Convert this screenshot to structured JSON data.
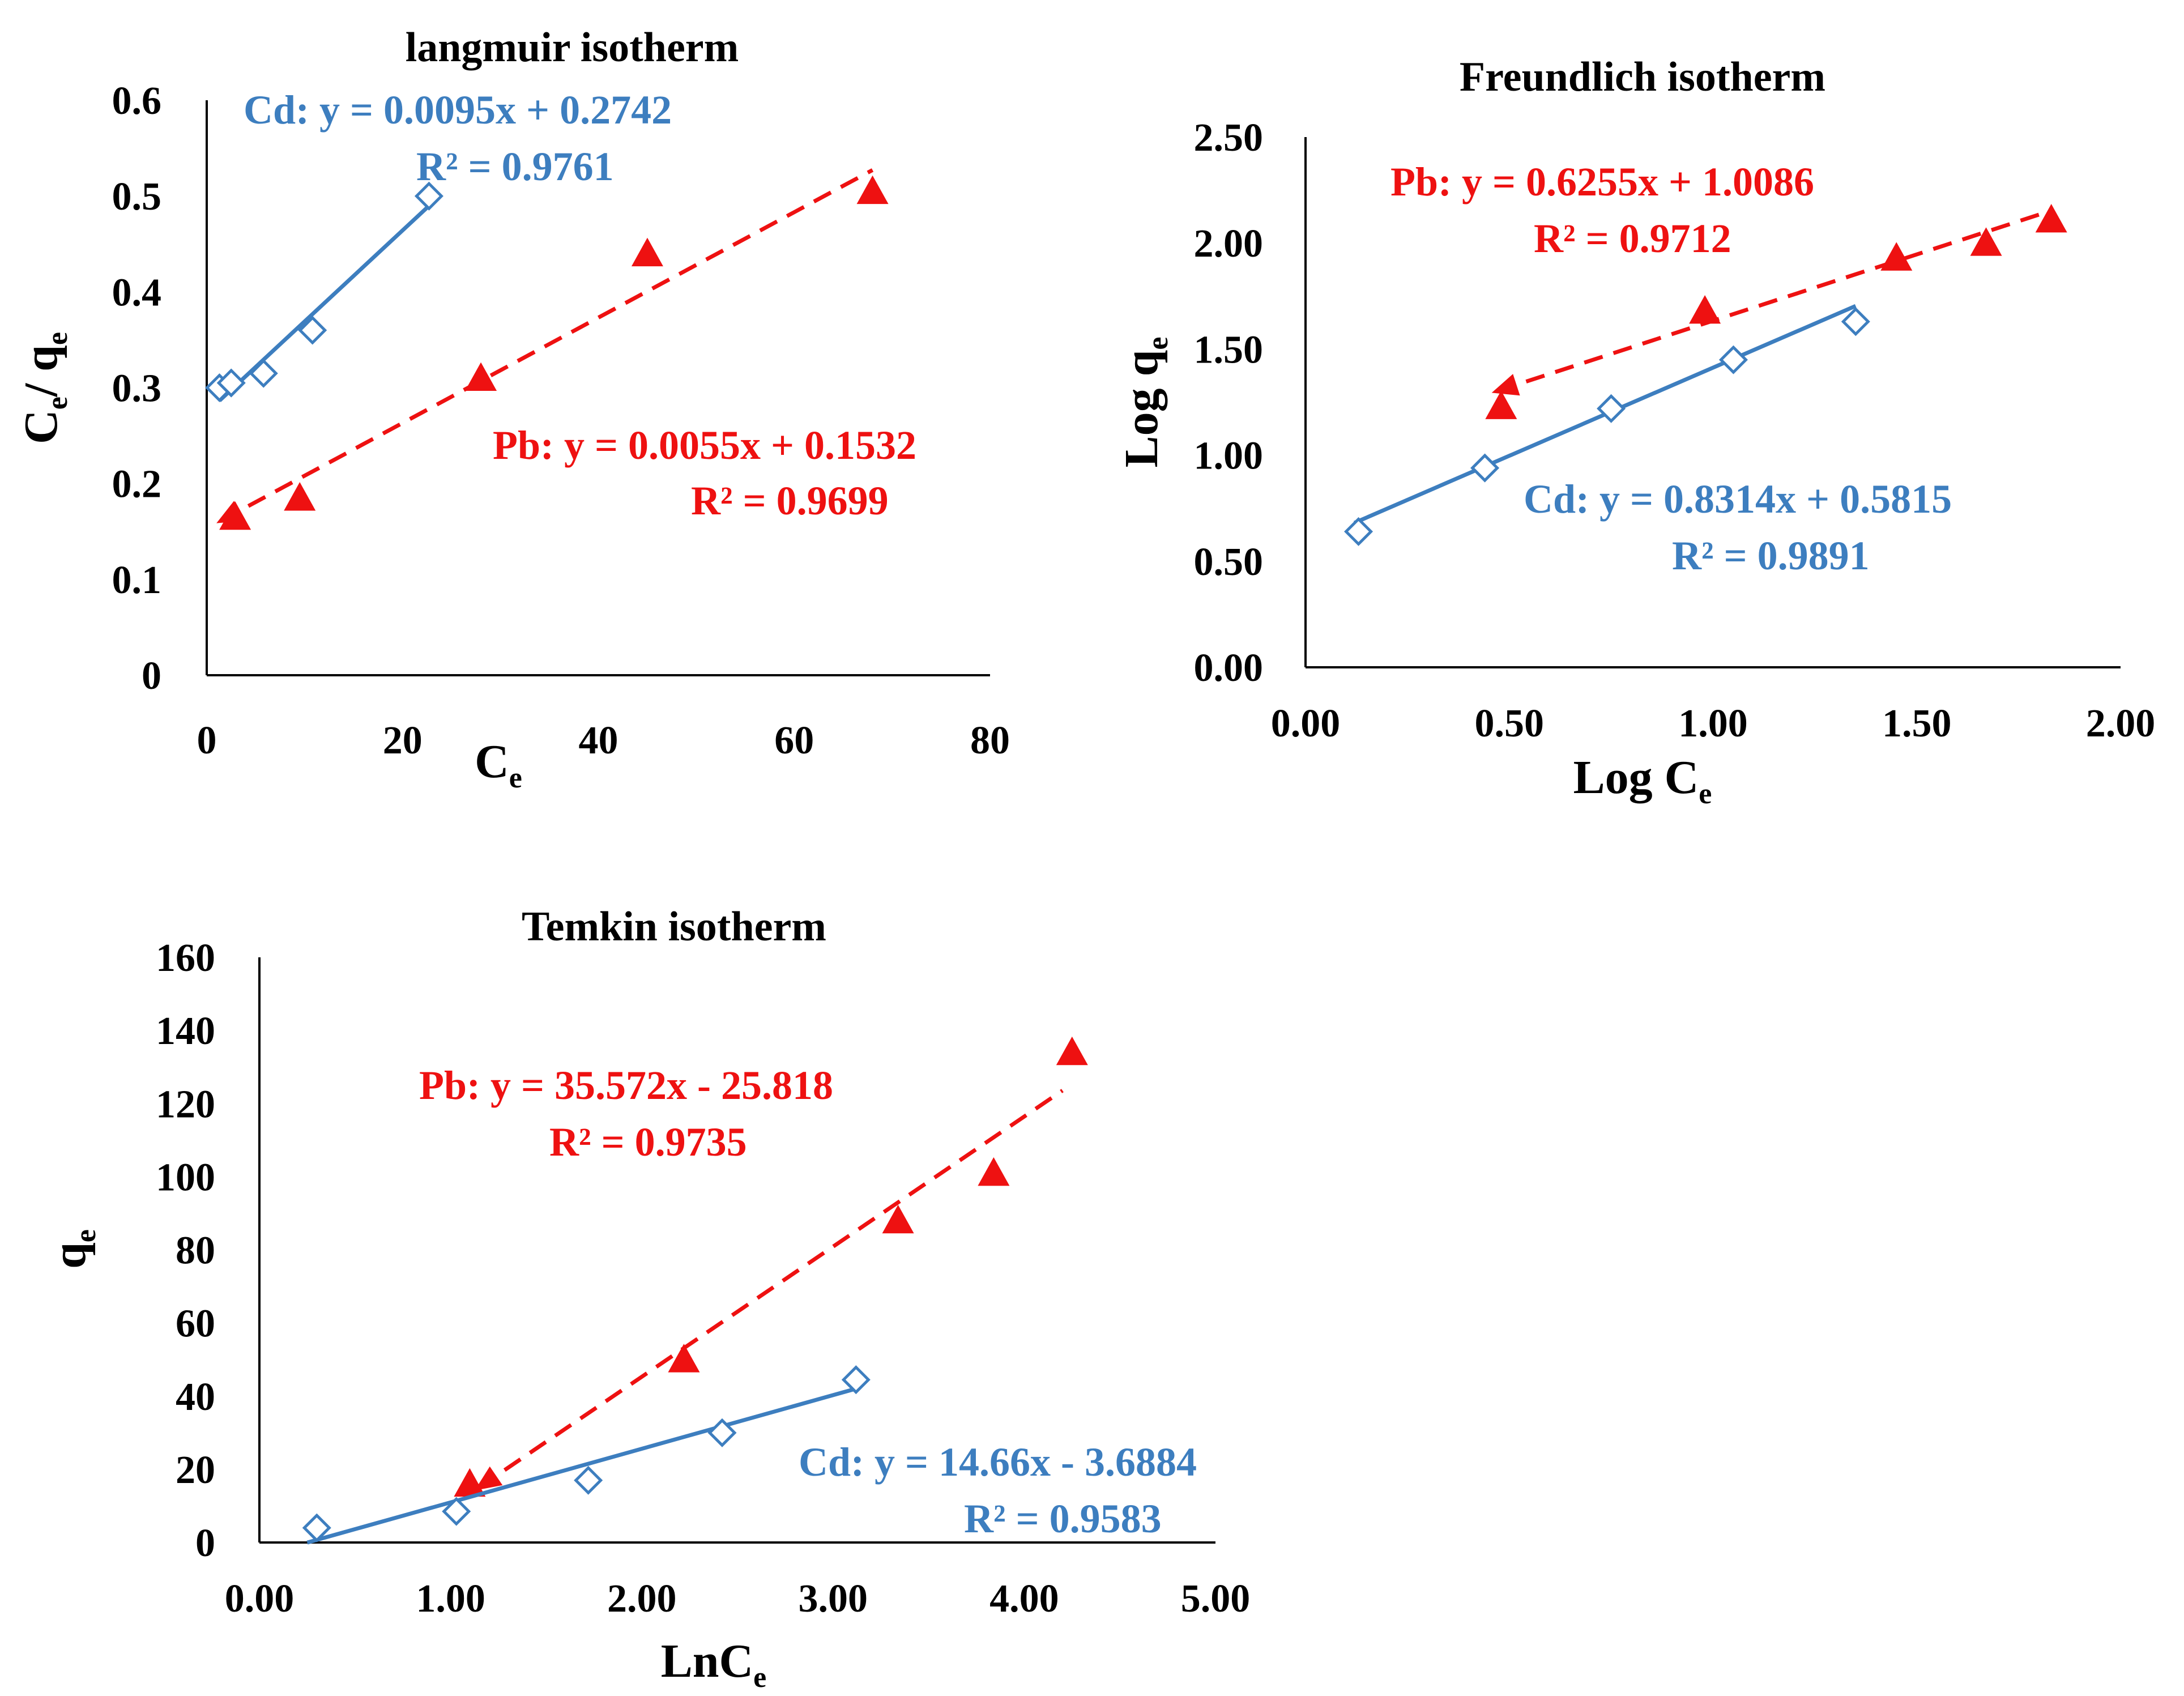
{
  "colors": {
    "cd": "#3d7ebf",
    "pb": "#ee1111",
    "axis": "#000000"
  },
  "chart_data": [
    {
      "id": "langmuir",
      "type": "scatter",
      "title": "langmuir  isotherm",
      "xlabel": {
        "main": "C",
        "sub": "e"
      },
      "ylabel": {
        "main": "C",
        "sub": "e",
        "mid": "/ q",
        "sub2": "e"
      },
      "xlim": [
        0,
        80
      ],
      "ylim": [
        0,
        0.6
      ],
      "x_ticks": [
        0,
        20,
        40,
        60,
        80
      ],
      "x_tick_labels": [
        "0",
        "20",
        "40",
        "60",
        "80"
      ],
      "y_ticks": [
        0,
        0.1,
        0.2,
        0.3,
        0.4,
        0.5,
        0.6
      ],
      "y_tick_labels": [
        "0",
        "0.1",
        "0.2",
        "0.3",
        "0.4",
        "0.5",
        "0.6"
      ],
      "grid": false,
      "series": [
        {
          "name": "Cd",
          "color_key": "cd",
          "marker": "diamond",
          "x": [
            1.3,
            2.5,
            5.8,
            10.8,
            22.7
          ],
          "y": [
            0.3,
            0.305,
            0.315,
            0.36,
            0.5
          ],
          "fit": {
            "slope": 0.0095,
            "intercept": 0.2742,
            "x_range": [
              1.3,
              22.7
            ],
            "style": "solid"
          },
          "equation": "Cd:  y = 0.0095x + 0.2742",
          "r2": "R² = 0.9761"
        },
        {
          "name": "Pb",
          "color_key": "pb",
          "marker": "triangle",
          "x": [
            2.9,
            9.5,
            28.0,
            45.0,
            68.0
          ],
          "y": [
            0.165,
            0.185,
            0.31,
            0.44,
            0.505
          ],
          "fit": {
            "slope": 0.0055,
            "intercept": 0.1532,
            "x_range": [
              1.5,
              68.0
            ],
            "style": "dashed"
          },
          "equation": "Pb: y = 0.0055x + 0.1532",
          "r2": "R² = 0.9699"
        }
      ]
    },
    {
      "id": "freundlich",
      "type": "scatter",
      "title": "Freundlich isotherm",
      "xlabel": {
        "main": "Log C",
        "sub": "e"
      },
      "ylabel": {
        "main": "Log q",
        "sub": "e"
      },
      "xlim": [
        0,
        2
      ],
      "ylim": [
        0,
        2.5
      ],
      "x_ticks": [
        0,
        0.5,
        1,
        1.5,
        2
      ],
      "x_tick_labels": [
        "0.00",
        "0.50",
        "1.00",
        "1.50",
        "2.00"
      ],
      "y_ticks": [
        0,
        0.5,
        1,
        1.5,
        2,
        2.5
      ],
      "y_tick_labels": [
        "0.00",
        "0.50",
        "1.00",
        "1.50",
        "2.00",
        "2.50"
      ],
      "grid": false,
      "series": [
        {
          "name": "Pb",
          "color_key": "pb",
          "marker": "triangle",
          "x": [
            0.48,
            0.98,
            1.45,
            1.67,
            1.83
          ],
          "y": [
            1.23,
            1.68,
            1.93,
            2.0,
            2.11
          ],
          "fit": {
            "slope": 0.6255,
            "intercept": 1.0086,
            "x_range": [
              0.47,
              1.83
            ],
            "style": "dashed"
          },
          "equation": "Pb:  y = 0.6255x + 1.0086",
          "r2": "R² = 0.9712"
        },
        {
          "name": "Cd",
          "color_key": "cd",
          "marker": "diamond",
          "x": [
            0.13,
            0.44,
            0.75,
            1.05,
            1.35
          ],
          "y": [
            0.64,
            0.94,
            1.22,
            1.45,
            1.63
          ],
          "fit": {
            "slope": 0.8314,
            "intercept": 0.5815,
            "x_range": [
              0.12,
              1.35
            ],
            "style": "solid"
          },
          "equation": "Cd:  y = 0.8314x + 0.5815",
          "r2": "R² = 0.9891"
        }
      ]
    },
    {
      "id": "temkin",
      "type": "scatter",
      "title": "Temkin isotherm",
      "xlabel": {
        "main": "LnC",
        "sub": "e"
      },
      "ylabel": {
        "main": "q",
        "sub": "e"
      },
      "xlim": [
        0,
        5
      ],
      "ylim": [
        0,
        160
      ],
      "x_ticks": [
        0,
        1,
        2,
        3,
        4,
        5
      ],
      "x_tick_labels": [
        "0.00",
        "1.00",
        "2.00",
        "3.00",
        "4.00",
        "5.00"
      ],
      "y_ticks": [
        0,
        20,
        40,
        60,
        80,
        100,
        120,
        140,
        160
      ],
      "y_tick_labels": [
        "0",
        "20",
        "40",
        "60",
        "80",
        "100",
        "120",
        "140",
        "160"
      ],
      "grid": false,
      "series": [
        {
          "name": "Pb",
          "color_key": "pb",
          "marker": "triangle",
          "x": [
            1.1,
            2.22,
            3.34,
            3.84,
            4.25
          ],
          "y": [
            16,
            50,
            88,
            101,
            134
          ],
          "fit": {
            "slope": 35.572,
            "intercept": -25.818,
            "x_range": [
              1.15,
              4.2
            ],
            "style": "dashed"
          },
          "equation": "Pb: y = 35.572x - 25.818",
          "r2": "R² = 0.9735"
        },
        {
          "name": "Cd",
          "color_key": "cd",
          "marker": "diamond",
          "x": [
            0.3,
            1.03,
            1.72,
            2.42,
            3.12
          ],
          "y": [
            4,
            8.5,
            17,
            30,
            44.5
          ],
          "fit": {
            "slope": 14.66,
            "intercept": -3.6884,
            "x_range": [
              0.25,
              3.12
            ],
            "style": "solid"
          },
          "equation": "Cd: y = 14.66x - 3.6884",
          "r2": "R² = 0.9583"
        }
      ]
    }
  ]
}
